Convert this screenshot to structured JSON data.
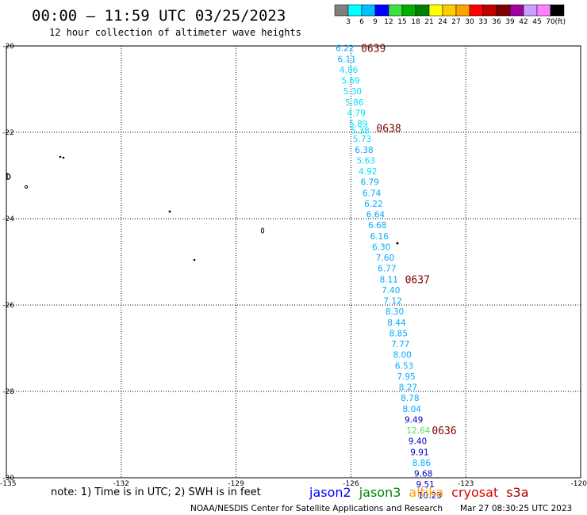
{
  "header": {
    "title": "00:00 – 11:59 UTC 03/25/2023",
    "subtitle": "12 hour collection of altimeter wave heights"
  },
  "colorbar": {
    "colors": [
      "#808080",
      "#00ffff",
      "#00bfff",
      "#0000ff",
      "#40e040",
      "#00b000",
      "#008000",
      "#ffff00",
      "#ffcc00",
      "#ffa500",
      "#ff0000",
      "#c00000",
      "#800000",
      "#a000a0",
      "#c8a0ff",
      "#ff80ff",
      "#000000"
    ],
    "labels": [
      "3",
      "6",
      "9",
      "12",
      "15",
      "18",
      "21",
      "24",
      "27",
      "30",
      "33",
      "36",
      "39",
      "42",
      "45",
      "70"
    ],
    "unit": "(ft)"
  },
  "axes": {
    "lat_ticks": [
      "-20",
      "-22",
      "-24",
      "-26",
      "-28",
      "-30"
    ],
    "lon_ticks": [
      "-135",
      "-132",
      "-129",
      "-126",
      "-123",
      "-120"
    ]
  },
  "track": {
    "times": [
      {
        "label": "0639",
        "lat": -20.05
      },
      {
        "label": "0638",
        "lat": -21.9
      },
      {
        "label": "0637",
        "lat": -25.4
      },
      {
        "label": "0636",
        "lat": -28.9
      }
    ],
    "points": [
      {
        "v": "6.22",
        "lon": -126.4,
        "lat": -20.05,
        "c": "#00aaff"
      },
      {
        "v": "6.11",
        "lon": -126.35,
        "lat": -20.3,
        "c": "#00aaff"
      },
      {
        "v": "4.86",
        "lon": -126.3,
        "lat": -20.55,
        "c": "#00e0ff"
      },
      {
        "v": "5.69",
        "lon": -126.25,
        "lat": -20.8,
        "c": "#00e0ff"
      },
      {
        "v": "5.30",
        "lon": -126.2,
        "lat": -21.05,
        "c": "#00e0ff"
      },
      {
        "v": "5.86",
        "lon": -126.15,
        "lat": -21.3,
        "c": "#00e0ff"
      },
      {
        "v": "4.79",
        "lon": -126.1,
        "lat": -21.55,
        "c": "#00e0ff"
      },
      {
        "v": "5.89",
        "lon": -126.05,
        "lat": -21.8,
        "c": "#00e0ff"
      },
      {
        "v": "5.38",
        "lon": -126.0,
        "lat": -21.95,
        "c": "#00e0ff"
      },
      {
        "v": "5.73",
        "lon": -125.95,
        "lat": -22.15,
        "c": "#00e0ff"
      },
      {
        "v": "6.38",
        "lon": -125.9,
        "lat": -22.4,
        "c": "#00aaff"
      },
      {
        "v": "5.63",
        "lon": -125.85,
        "lat": -22.65,
        "c": "#00e0ff"
      },
      {
        "v": "4.92",
        "lon": -125.8,
        "lat": -22.9,
        "c": "#00e0ff"
      },
      {
        "v": "6.79",
        "lon": -125.75,
        "lat": -23.15,
        "c": "#00aaff"
      },
      {
        "v": "6.74",
        "lon": -125.7,
        "lat": -23.4,
        "c": "#00aaff"
      },
      {
        "v": "6.22",
        "lon": -125.65,
        "lat": -23.65,
        "c": "#00aaff"
      },
      {
        "v": "6.64",
        "lon": -125.6,
        "lat": -23.9,
        "c": "#00aaff"
      },
      {
        "v": "6.68",
        "lon": -125.55,
        "lat": -24.15,
        "c": "#00aaff"
      },
      {
        "v": "6.16",
        "lon": -125.5,
        "lat": -24.4,
        "c": "#00aaff"
      },
      {
        "v": "6.30",
        "lon": -125.45,
        "lat": -24.65,
        "c": "#00aaff"
      },
      {
        "v": "7.60",
        "lon": -125.35,
        "lat": -24.9,
        "c": "#00aaff"
      },
      {
        "v": "6.77",
        "lon": -125.3,
        "lat": -25.15,
        "c": "#00aaff"
      },
      {
        "v": "8.11",
        "lon": -125.25,
        "lat": -25.4,
        "c": "#00aaff"
      },
      {
        "v": "7.40",
        "lon": -125.2,
        "lat": -25.65,
        "c": "#00aaff"
      },
      {
        "v": "7.12",
        "lon": -125.15,
        "lat": -25.9,
        "c": "#00aaff"
      },
      {
        "v": "8.30",
        "lon": -125.1,
        "lat": -26.15,
        "c": "#00aaff"
      },
      {
        "v": "8.44",
        "lon": -125.05,
        "lat": -26.4,
        "c": "#00aaff"
      },
      {
        "v": "8.85",
        "lon": -125.0,
        "lat": -26.65,
        "c": "#00aaff"
      },
      {
        "v": "7.77",
        "lon": -124.95,
        "lat": -26.9,
        "c": "#00aaff"
      },
      {
        "v": "8.00",
        "lon": -124.9,
        "lat": -27.15,
        "c": "#00aaff"
      },
      {
        "v": "6.53",
        "lon": -124.85,
        "lat": -27.4,
        "c": "#00aaff"
      },
      {
        "v": "7.95",
        "lon": -124.8,
        "lat": -27.65,
        "c": "#00aaff"
      },
      {
        "v": "8.27",
        "lon": -124.75,
        "lat": -27.9,
        "c": "#00aaff"
      },
      {
        "v": "8.78",
        "lon": -124.7,
        "lat": -28.15,
        "c": "#00aaff"
      },
      {
        "v": "8.04",
        "lon": -124.65,
        "lat": -28.4,
        "c": "#00aaff"
      },
      {
        "v": "9.49",
        "lon": -124.6,
        "lat": -28.65,
        "c": "#0000cc"
      },
      {
        "v": "12.64",
        "lon": -124.55,
        "lat": -28.9,
        "c": "#55dd55"
      },
      {
        "v": "9.40",
        "lon": -124.5,
        "lat": -29.15,
        "c": "#0000cc"
      },
      {
        "v": "9.91",
        "lon": -124.45,
        "lat": -29.4,
        "c": "#0000cc"
      },
      {
        "v": "8.86",
        "lon": -124.4,
        "lat": -29.65,
        "c": "#00aaff"
      },
      {
        "v": "9.68",
        "lon": -124.35,
        "lat": -29.9,
        "c": "#0000cc"
      },
      {
        "v": "9.51",
        "lon": -124.3,
        "lat": -30.15,
        "c": "#0000cc"
      },
      {
        "v": "10.23",
        "lon": -124.25,
        "lat": -30.4,
        "c": "#0000cc"
      }
    ]
  },
  "footer": {
    "note": "note: 1) Time is in UTC; 2) SWH is in feet",
    "satellites": [
      {
        "name": "jason2",
        "color": "#0000ff"
      },
      {
        "name": "jason3",
        "color": "#008800"
      },
      {
        "name": "altika",
        "color": "#ff9900"
      },
      {
        "name": "cryosat",
        "color": "#dd0000"
      },
      {
        "name": "s3a",
        "color": "#aa0000"
      }
    ],
    "credit": "NOAA/NESDIS Center for Satellite Applications and Research",
    "timestamp": "Mar 27 08:30:25 UTC 2023"
  }
}
